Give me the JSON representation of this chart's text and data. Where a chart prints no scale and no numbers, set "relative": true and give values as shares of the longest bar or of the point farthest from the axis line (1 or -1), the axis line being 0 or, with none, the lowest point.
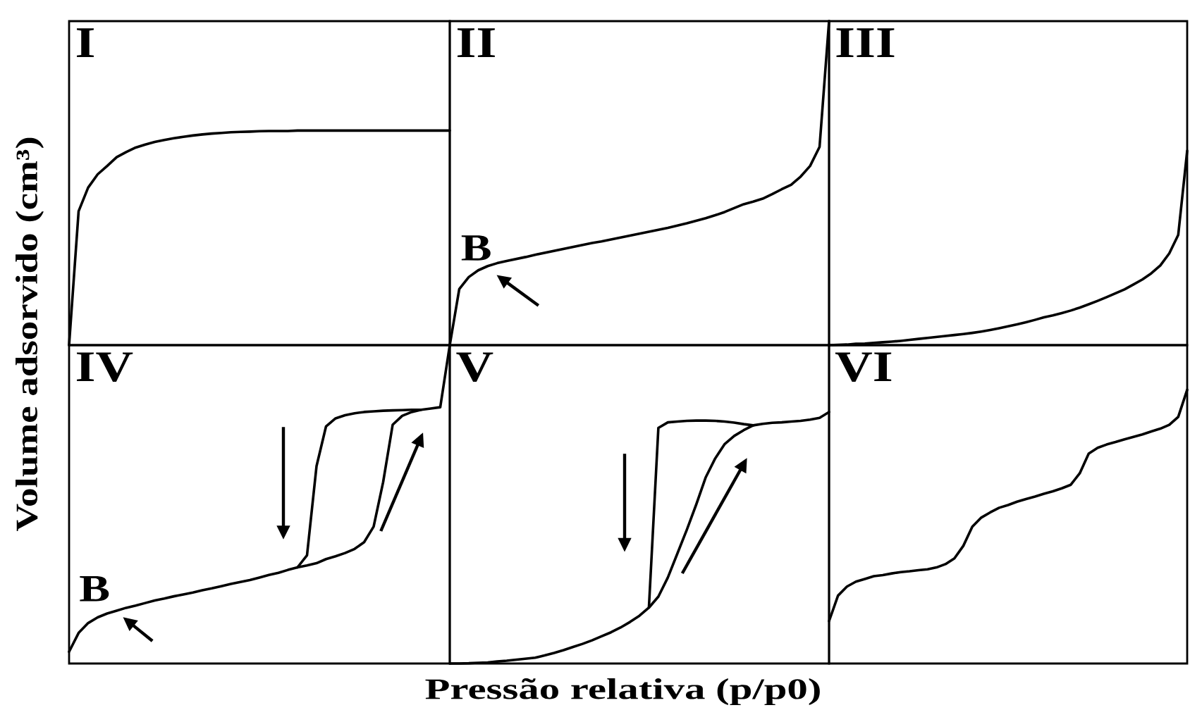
{
  "chart_data": [
    {
      "type": "line",
      "title": "I",
      "ylabel": "Volume adsorvido (cm³)",
      "relative": true,
      "categories": [
        null,
        null,
        null,
        null,
        null,
        null,
        null,
        null,
        null,
        null,
        null,
        null,
        null,
        null,
        null,
        null,
        null,
        null,
        null,
        null,
        null,
        null,
        null,
        null,
        null,
        null,
        null,
        null,
        null,
        null,
        null,
        null,
        null,
        null,
        null,
        null,
        null,
        null,
        null,
        null,
        null
      ],
      "series": [
        {
          "color": "#000000",
          "values": [
            0,
            0.624,
            0.734,
            0.796,
            0.835,
            0.876,
            0.9,
            0.921,
            0.935,
            0.947,
            0.956,
            0.964,
            0.971,
            0.977,
            0.982,
            0.986,
            0.989,
            0.992,
            0.994,
            0.995,
            0.997,
            0.998,
            0.998,
            0.998,
            1,
            1,
            1,
            1,
            1,
            1,
            1,
            1,
            1,
            1,
            1,
            1,
            1,
            1,
            1,
            1,
            1
          ]
        }
      ]
    },
    {
      "type": "line",
      "title": "II",
      "relative": true,
      "annotations": [
        "B"
      ],
      "categories": [
        null,
        null,
        null,
        null,
        null,
        null,
        null,
        null,
        null,
        null,
        null,
        null,
        null,
        null,
        null,
        null,
        null,
        null,
        null,
        null,
        null,
        null,
        null,
        null,
        null,
        null,
        null,
        null,
        null,
        null,
        null,
        null,
        null,
        null,
        null,
        null,
        null,
        null,
        null,
        null,
        null
      ],
      "series": [
        {
          "color": "#000000",
          "values": [
            0,
            0.173,
            0.21,
            0.231,
            0.244,
            0.253,
            0.26,
            0.266,
            0.272,
            0.279,
            0.285,
            0.291,
            0.297,
            0.303,
            0.309,
            0.315,
            0.32,
            0.326,
            0.332,
            0.338,
            0.344,
            0.35,
            0.356,
            0.362,
            0.369,
            0.376,
            0.384,
            0.392,
            0.401,
            0.411,
            0.423,
            0.435,
            0.443,
            0.452,
            0.466,
            0.481,
            0.495,
            0.52,
            0.553,
            0.612,
            1
          ]
        }
      ]
    },
    {
      "type": "line",
      "title": "III",
      "relative": true,
      "categories": [
        null,
        null,
        null,
        null,
        null,
        null,
        null,
        null,
        null,
        null,
        null,
        null,
        null,
        null,
        null,
        null,
        null,
        null,
        null,
        null,
        null,
        null,
        null,
        null,
        null,
        null,
        null,
        null,
        null,
        null,
        null,
        null,
        null,
        null,
        null,
        null,
        null,
        null,
        null,
        null,
        null
      ],
      "series": [
        {
          "color": "#000000",
          "values": [
            0,
            0.002,
            0.003,
            0.007,
            0.008,
            0.012,
            0.015,
            0.018,
            0.022,
            0.027,
            0.032,
            0.037,
            0.042,
            0.047,
            0.052,
            0.057,
            0.063,
            0.07,
            0.078,
            0.087,
            0.097,
            0.107,
            0.118,
            0.13,
            0.143,
            0.153,
            0.165,
            0.178,
            0.193,
            0.21,
            0.228,
            0.247,
            0.267,
            0.287,
            0.312,
            0.338,
            0.37,
            0.41,
            0.472,
            0.567,
            1
          ]
        }
      ]
    },
    {
      "type": "line",
      "title": "IV",
      "relative": true,
      "annotations": [
        "B"
      ],
      "categories": [
        null,
        null,
        null,
        null,
        null,
        null,
        null,
        null,
        null,
        null,
        null,
        null,
        null,
        null,
        null,
        null,
        null,
        null,
        null,
        null,
        null,
        null,
        null,
        null,
        null,
        null,
        null,
        null,
        null,
        null,
        null,
        null,
        null,
        null,
        null,
        null,
        null,
        null,
        null,
        null,
        null
      ],
      "series": [
        {
          "color": "#000000",
          "values": [
            0.037,
            0.096,
            0.127,
            0.145,
            0.157,
            0.166,
            0.175,
            0.182,
            0.19,
            0.198,
            0.204,
            0.211,
            0.217,
            0.223,
            0.23,
            0.236,
            0.243,
            0.25,
            0.256,
            0.262,
            0.27,
            0.278,
            0.285,
            0.294,
            0.302,
            0.308,
            0.315,
            0.328,
            0.337,
            0.347,
            0.36,
            0.381,
            0.43,
            0.57,
            0.75,
            0.778,
            0.79,
            0.797,
            0.801,
            0.805,
            1
          ]
        },
        {
          "color": "#000000",
          "values": [
            null,
            null,
            null,
            null,
            null,
            null,
            null,
            null,
            null,
            null,
            null,
            null,
            null,
            null,
            null,
            null,
            null,
            null,
            null,
            null,
            null,
            null,
            null,
            null,
            0.302,
            0.34,
            0.62,
            0.745,
            0.77,
            0.78,
            0.786,
            0.79,
            0.792,
            0.794,
            0.795,
            0.796,
            0.797,
            0.797,
            null,
            null,
            null
          ]
        }
      ]
    },
    {
      "type": "line",
      "title": "V",
      "xlabel": "Pressão relativa (p/p0)",
      "relative": true,
      "categories": [
        null,
        null,
        null,
        null,
        null,
        null,
        null,
        null,
        null,
        null,
        null,
        null,
        null,
        null,
        null,
        null,
        null,
        null,
        null,
        null,
        null,
        null,
        null,
        null,
        null,
        null,
        null,
        null,
        null,
        null,
        null,
        null,
        null,
        null,
        null,
        null,
        null,
        null,
        null,
        null,
        null
      ],
      "series": [
        {
          "color": "#000000",
          "values": [
            0,
            0,
            0.001,
            0.003,
            0.004,
            0.008,
            0.011,
            0.015,
            0.019,
            0.023,
            0.032,
            0.042,
            0.053,
            0.066,
            0.078,
            0.092,
            0.108,
            0.124,
            0.143,
            0.165,
            0.19,
            0.222,
            0.266,
            0.342,
            0.437,
            0.532,
            0.633,
            0.741,
            0.816,
            0.873,
            0.905,
            0.928,
            0.947,
            0.953,
            0.957,
            0.959,
            0.962,
            0.965,
            0.97,
            0.977,
            1
          ]
        },
        {
          "color": "#000000",
          "values": [
            null,
            null,
            null,
            null,
            null,
            null,
            null,
            null,
            null,
            null,
            null,
            null,
            null,
            null,
            null,
            null,
            null,
            null,
            null,
            null,
            null,
            0.222,
            0.937,
            0.959,
            0.962,
            0.965,
            0.966,
            0.966,
            0.965,
            0.962,
            0.958,
            0.952,
            0.947,
            null,
            null,
            null,
            null,
            null,
            null,
            null,
            null
          ]
        }
      ]
    },
    {
      "type": "line",
      "title": "VI",
      "relative": true,
      "categories": [
        null,
        null,
        null,
        null,
        null,
        null,
        null,
        null,
        null,
        null,
        null,
        null,
        null,
        null,
        null,
        null,
        null,
        null,
        null,
        null,
        null,
        null,
        null,
        null,
        null,
        null,
        null,
        null,
        null,
        null,
        null,
        null,
        null,
        null,
        null,
        null,
        null,
        null,
        null,
        null,
        null
      ],
      "series": [
        {
          "color": "#000000",
          "values": [
            0.155,
            0.248,
            0.281,
            0.299,
            0.309,
            0.319,
            0.323,
            0.329,
            0.334,
            0.337,
            0.341,
            0.344,
            0.351,
            0.363,
            0.384,
            0.43,
            0.5,
            0.533,
            0.552,
            0.569,
            0.579,
            0.591,
            0.601,
            0.61,
            0.62,
            0.629,
            0.64,
            0.653,
            0.695,
            0.767,
            0.788,
            0.8,
            0.809,
            0.819,
            0.828,
            0.837,
            0.848,
            0.858,
            0.872,
            0.901,
            1
          ]
        }
      ]
    }
  ]
}
